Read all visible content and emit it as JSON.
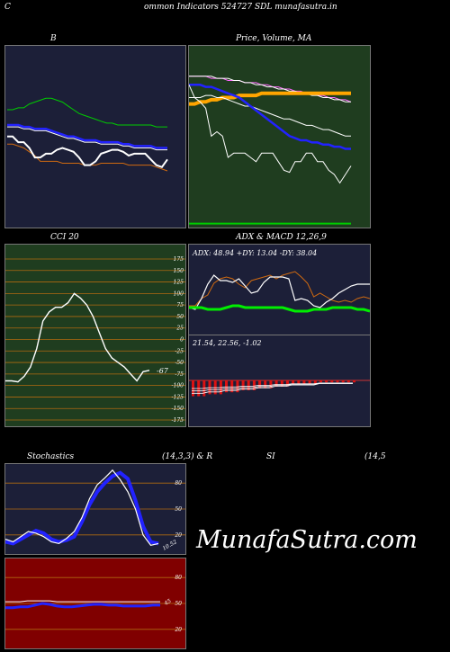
{
  "header": {
    "left_letter": "C",
    "title": "ommon  Indicators 524727 SDL  munafasutra.in"
  },
  "watermark": "MunafaSutra.com",
  "colors": {
    "panel_navy": "#1c1f38",
    "panel_green": "#1f3d1f",
    "panel_red": "#800000",
    "grid_orange": "#b06a10"
  },
  "chart_data": [
    {
      "id": "bollinger",
      "type": "line",
      "title": "B",
      "series": [
        {
          "color": "#00cc00",
          "values": [
            16,
            16,
            17,
            17,
            19,
            20,
            21,
            22,
            22,
            21,
            20,
            18,
            16,
            14,
            13,
            12,
            11,
            10,
            9,
            9,
            8,
            8,
            8,
            8,
            8,
            8,
            8,
            7,
            7,
            7
          ]
        },
        {
          "color": "#ffffff",
          "values": [
            7,
            7,
            7,
            6,
            6,
            5,
            5,
            5,
            4,
            3,
            2,
            1,
            1,
            0,
            -1,
            -1,
            -1,
            -2,
            -2,
            -2,
            -2,
            -3,
            -3,
            -4,
            -4,
            -4,
            -4,
            -5,
            -5,
            -5
          ]
        },
        {
          "color": "#2222ff",
          "values": [
            8,
            8,
            8,
            7,
            7,
            6,
            6,
            6,
            5,
            4,
            3,
            2,
            2,
            1,
            0,
            0,
            0,
            -1,
            -1,
            -1,
            -1,
            -2,
            -2,
            -3,
            -3,
            -3,
            -3,
            -4,
            -4,
            -4
          ]
        },
        {
          "color": "#d06a10",
          "values": [
            -2,
            -2,
            -3,
            -4,
            -6,
            -8,
            -11,
            -11,
            -11,
            -11,
            -12,
            -12,
            -12,
            -12,
            -13,
            -13,
            -13,
            -12,
            -12,
            -12,
            -12,
            -12,
            -13,
            -13,
            -13,
            -13,
            -13,
            -14,
            -15,
            -16
          ]
        },
        {
          "color": "#ffffff",
          "values": [
            2,
            2,
            -1,
            -1,
            -4,
            -9,
            -9,
            -7,
            -7,
            -5,
            -4,
            -5,
            -6,
            -9,
            -13,
            -13,
            -11,
            -7,
            -6,
            -5,
            -5,
            -6,
            -8,
            -7,
            -7,
            -7,
            -10,
            -13,
            -14,
            -10
          ]
        }
      ]
    },
    {
      "id": "price_ma",
      "type": "line",
      "title": "Price,  Volume,  MA",
      "series": [
        {
          "color": "#ff66ff",
          "values": [
            70,
            70,
            70,
            70,
            69,
            69,
            69,
            68,
            68,
            68,
            67,
            67,
            67,
            66,
            66,
            65,
            65,
            64,
            64,
            63,
            63,
            62,
            62,
            61,
            61,
            60,
            60,
            59,
            59,
            58
          ]
        },
        {
          "color": "#ffffff",
          "values": [
            70,
            70,
            70,
            70,
            70,
            69,
            69,
            69,
            68,
            68,
            67,
            67,
            66,
            66,
            65,
            65,
            64,
            64,
            63,
            63,
            62,
            62,
            61,
            61,
            60,
            60,
            59,
            59,
            58,
            58
          ]
        },
        {
          "color": "#ffa500",
          "values": [
            57,
            57,
            58,
            58,
            59,
            59,
            60,
            60,
            60,
            61,
            61,
            61,
            61,
            62,
            62,
            62,
            62,
            62,
            62,
            62,
            62,
            62,
            62,
            62,
            62,
            62,
            62,
            62,
            62,
            62
          ]
        },
        {
          "color": "#ffffff",
          "values": [
            60,
            60,
            60,
            61,
            61,
            60,
            60,
            59,
            58,
            57,
            56,
            56,
            55,
            54,
            53,
            52,
            51,
            50,
            50,
            49,
            48,
            47,
            47,
            46,
            45,
            45,
            44,
            43,
            42,
            42
          ]
        },
        {
          "color": "#2222ff",
          "values": [
            66,
            66,
            66,
            65,
            65,
            64,
            63,
            62,
            61,
            60,
            58,
            56,
            54,
            52,
            50,
            48,
            46,
            44,
            42,
            41,
            40,
            40,
            39,
            39,
            38,
            38,
            37,
            37,
            36,
            36
          ]
        },
        {
          "color": "#ffffff",
          "values": [
            66,
            60,
            58,
            55,
            42,
            44,
            42,
            32,
            34,
            34,
            34,
            32,
            30,
            34,
            34,
            34,
            30,
            26,
            25,
            30,
            30,
            34,
            34,
            30,
            30,
            26,
            24,
            20,
            24,
            28
          ]
        },
        {
          "color": "#00cc00",
          "values": [
            1,
            1,
            1,
            1,
            1,
            1,
            1,
            1,
            1,
            1,
            1,
            1,
            1,
            1,
            1,
            1,
            1,
            1,
            1,
            1,
            1,
            1,
            1,
            1,
            1,
            1,
            1,
            1,
            1,
            1
          ]
        }
      ]
    },
    {
      "id": "cci",
      "type": "line",
      "title": "CCI 20",
      "ylim": [
        -175,
        175
      ],
      "yticks": [
        "175",
        "150",
        "125",
        "100",
        "75",
        "50",
        "25",
        "0",
        "-25",
        "-50",
        "-75",
        "-100",
        "-125",
        "-150",
        "-175"
      ],
      "value_label": "-67",
      "series": [
        {
          "color": "#ffffff",
          "values": [
            -90,
            -90,
            -92,
            -80,
            -60,
            -20,
            40,
            60,
            70,
            70,
            80,
            100,
            90,
            75,
            50,
            15,
            -20,
            -40,
            -50,
            -60,
            -75,
            -90,
            -70,
            -67
          ]
        }
      ]
    },
    {
      "id": "adx",
      "type": "line",
      "title": "ADX  & MACD 12,26,9",
      "label": "ADX: 48.94  +DY: 13.04  -DY: 38.04",
      "series": [
        {
          "color": "#d06a10",
          "values": [
            30,
            30,
            38,
            42,
            55,
            60,
            62,
            60,
            54,
            50,
            58,
            60,
            62,
            64,
            60,
            64,
            66,
            68,
            62,
            55,
            40,
            44,
            40,
            36,
            34,
            36,
            34,
            38,
            40,
            38
          ]
        },
        {
          "color": "#ffffff",
          "values": [
            28,
            26,
            38,
            54,
            64,
            58,
            58,
            56,
            60,
            52,
            44,
            46,
            56,
            62,
            62,
            62,
            60,
            36,
            38,
            36,
            30,
            28,
            34,
            38,
            44,
            48,
            52,
            54,
            54,
            54
          ]
        },
        {
          "color": "#00ee00",
          "values": [
            28,
            28,
            28,
            26,
            26,
            26,
            28,
            30,
            30,
            28,
            28,
            28,
            28,
            28,
            28,
            28,
            26,
            24,
            24,
            24,
            26,
            26,
            26,
            28,
            28,
            28,
            28,
            26,
            26,
            24
          ]
        }
      ]
    },
    {
      "id": "macd",
      "type": "bar",
      "label": "21.54,  22.56,  -1.02",
      "values": [
        -8,
        -8,
        -8,
        -7,
        -7,
        -7,
        -6,
        -6,
        -6,
        -5,
        -5,
        -5,
        -4,
        -4,
        -4,
        -3,
        -3,
        -3,
        -2,
        -2,
        -2,
        -2,
        -2,
        -1,
        -1,
        -1,
        -1,
        -1,
        -1,
        -1
      ]
    },
    {
      "id": "stochastics",
      "type": "line",
      "title": "Stochastics",
      "params": "(14,3,3) & R",
      "ylim": [
        0,
        100
      ],
      "yticks": [
        "80",
        "50",
        "20"
      ],
      "value_label": "10.52",
      "series": [
        {
          "color": "#2222ff",
          "values": [
            12,
            10,
            15,
            20,
            25,
            22,
            15,
            12,
            14,
            18,
            35,
            55,
            70,
            80,
            88,
            92,
            85,
            60,
            30,
            12,
            10
          ]
        },
        {
          "color": "#ffffff",
          "values": [
            15,
            12,
            18,
            24,
            22,
            18,
            12,
            10,
            16,
            24,
            40,
            62,
            78,
            86,
            95,
            84,
            70,
            50,
            20,
            8,
            10
          ]
        }
      ]
    },
    {
      "id": "rsi",
      "type": "line",
      "title": "SI",
      "params": "(14,5",
      "ylim": [
        0,
        100
      ],
      "yticks": [
        "80",
        "50",
        "20"
      ],
      "value_label": "45",
      "series": [
        {
          "color": "#2222ff",
          "values": [
            45,
            45,
            46,
            46,
            48,
            50,
            49,
            47,
            46,
            46,
            47,
            48,
            49,
            49,
            48,
            48,
            47,
            47,
            47,
            47,
            48,
            48
          ]
        },
        {
          "color": "#ffffff",
          "values": [
            52,
            52,
            52,
            53,
            53,
            53,
            53,
            52,
            52,
            52,
            52,
            52,
            52,
            52,
            52,
            52,
            52,
            52,
            52,
            52,
            52,
            52
          ]
        }
      ]
    }
  ]
}
